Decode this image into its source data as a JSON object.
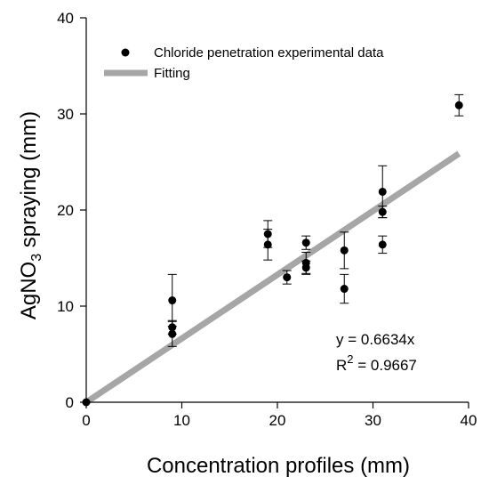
{
  "chart_data": {
    "type": "scatter",
    "xlabel": "Concentration profiles (mm)",
    "ylabel": {
      "prefix": "AgNO",
      "subscript": "3",
      "suffix": " spraying (mm)"
    },
    "xlim": [
      0,
      40
    ],
    "ylim": [
      0,
      40
    ],
    "xticks": [
      0,
      10,
      20,
      30,
      40
    ],
    "yticks": [
      0,
      10,
      20,
      30,
      40
    ],
    "grid": false,
    "legend_position": "top-left",
    "series": [
      {
        "name": "Chloride penetration experimental data",
        "kind": "points",
        "color": "#000000",
        "points": [
          {
            "x": 0,
            "y": 0,
            "err": 0
          },
          {
            "x": 9,
            "y": 10.6,
            "err": 2.7
          },
          {
            "x": 9,
            "y": 7.8,
            "err": 0.7
          },
          {
            "x": 9,
            "y": 7.1,
            "err": 1.3
          },
          {
            "x": 19,
            "y": 17.5,
            "err": 1.4
          },
          {
            "x": 19,
            "y": 16.4,
            "err": 1.6
          },
          {
            "x": 21,
            "y": 13.0,
            "err": 0.7
          },
          {
            "x": 23,
            "y": 16.6,
            "err": 0.7
          },
          {
            "x": 23,
            "y": 14.5,
            "err": 1.1
          },
          {
            "x": 23,
            "y": 14.0,
            "err": 0.7
          },
          {
            "x": 27,
            "y": 15.8,
            "err": 1.9
          },
          {
            "x": 27,
            "y": 11.8,
            "err": 1.5
          },
          {
            "x": 31,
            "y": 21.9,
            "err": 2.7
          },
          {
            "x": 31,
            "y": 19.8,
            "err": 0.6
          },
          {
            "x": 31,
            "y": 16.4,
            "err": 0.9
          },
          {
            "x": 39,
            "y": 30.9,
            "err": 1.1
          }
        ]
      },
      {
        "name": "Fitting",
        "kind": "line",
        "color": "#a6a6a6",
        "slope": 0.6634,
        "x_range": [
          0,
          39
        ]
      }
    ],
    "annotations": {
      "equation": "y  = 0.6634x",
      "r2_label": "R",
      "r2_sup": "2",
      "r2_value": " = 0.9667"
    }
  }
}
